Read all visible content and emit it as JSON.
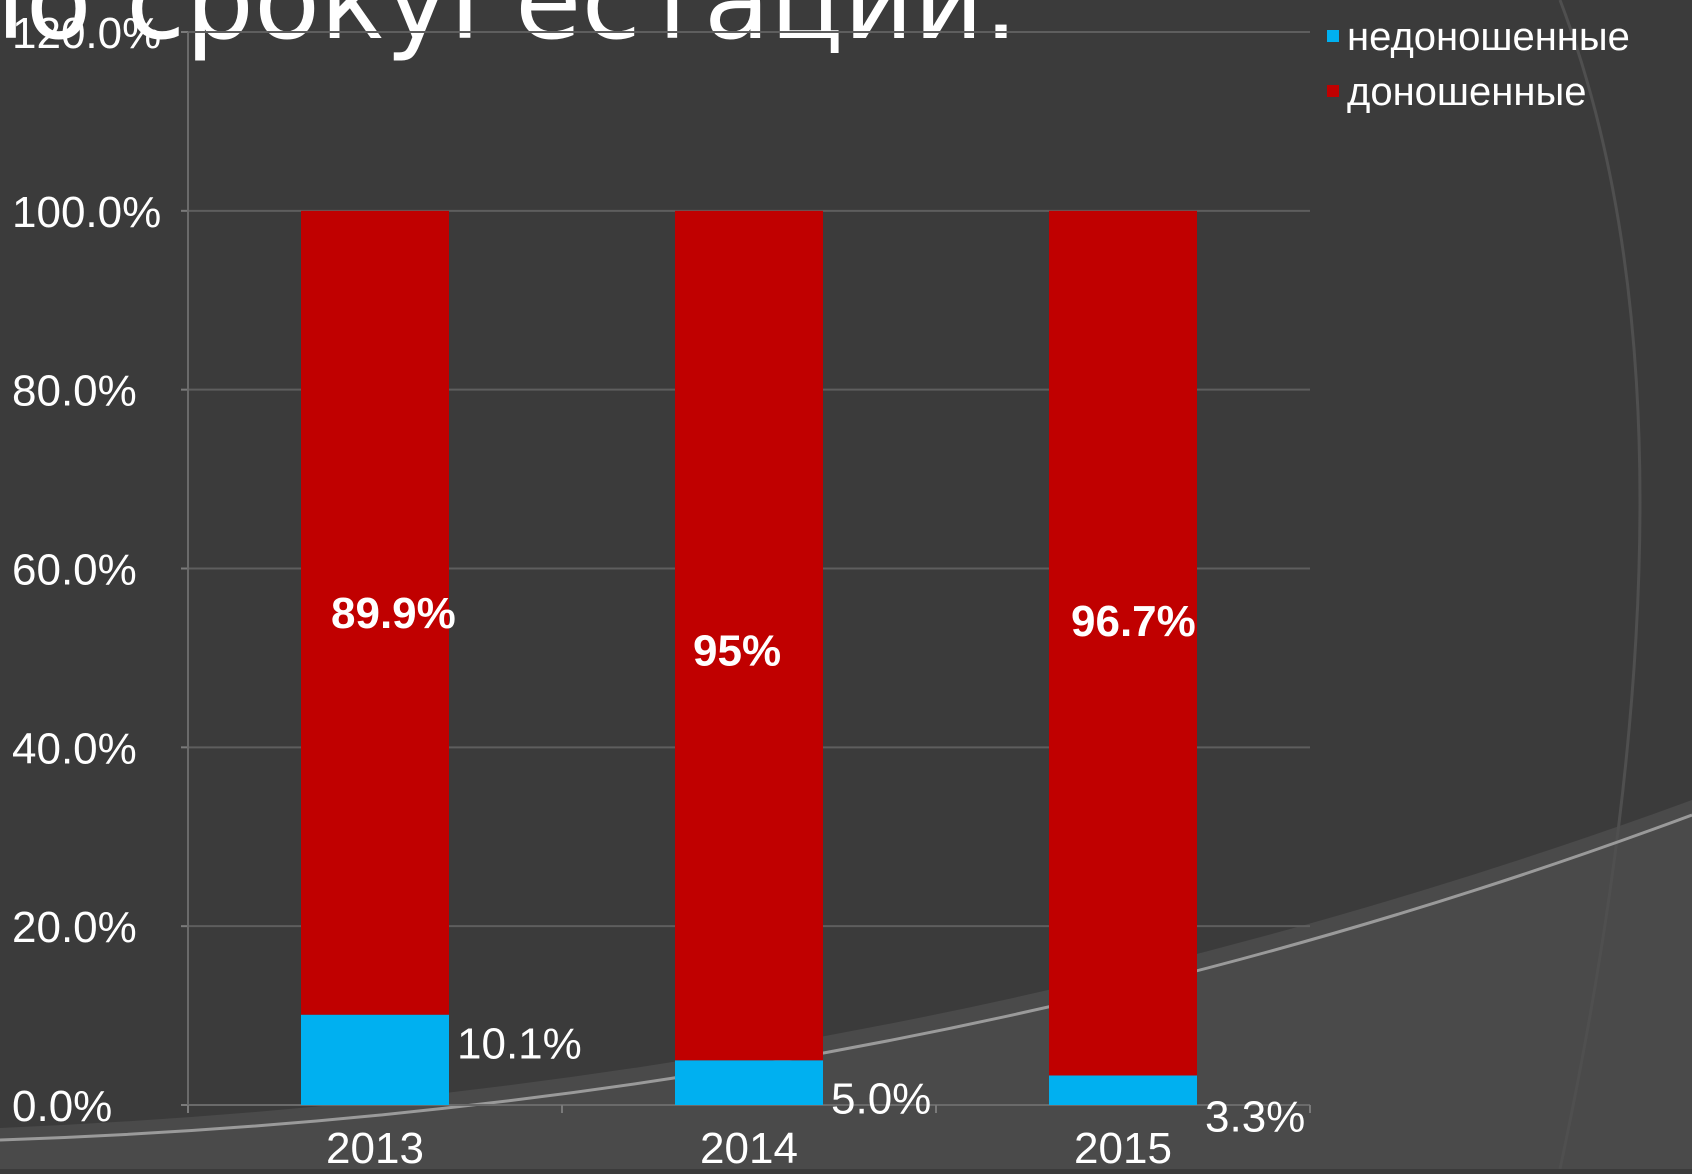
{
  "slide": {
    "title_fragment": "по срокуГестации.",
    "background_color": "#3b3b3b",
    "decor_color": "#4a4a4a"
  },
  "chart_data": {
    "type": "bar",
    "stacked": true,
    "categories": [
      "2013",
      "2014",
      "2015"
    ],
    "series": [
      {
        "name": "недоношенные",
        "color": "#00b0f0",
        "values": [
          10.1,
          5.0,
          3.3
        ],
        "labels": [
          "10.1%",
          "5.0%",
          "3.3%"
        ]
      },
      {
        "name": "доношенные",
        "color": "#c00000",
        "values": [
          89.9,
          95,
          96.7
        ],
        "labels": [
          "89.9%",
          "95%",
          "96.7%"
        ]
      }
    ],
    "y_ticks": [
      "0.0%",
      "20.0%",
      "40.0%",
      "60.0%",
      "80.0%",
      "100.0%",
      "120.0%"
    ],
    "ylim": [
      0,
      120
    ],
    "grid": true,
    "legend_position": "top-right"
  }
}
